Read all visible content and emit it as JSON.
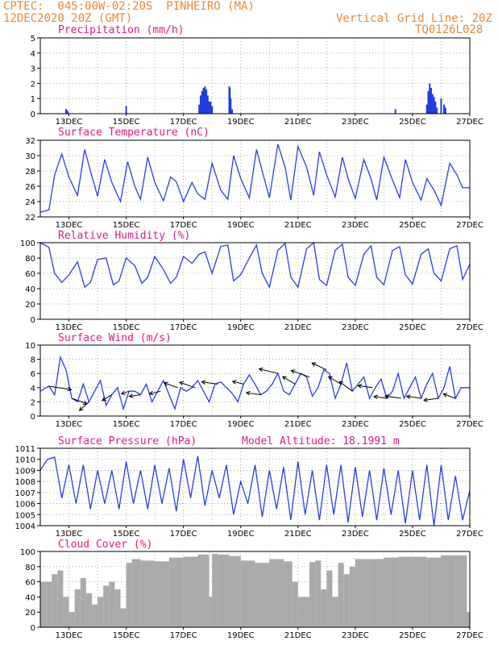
{
  "header": {
    "line1": "CPTEC:  045:00W-02:20S  PINHEIRO (MA)",
    "line2": "12DEC2020 20Z (GMT)",
    "grid_note": "Vertical Grid Line: 20Z",
    "code": "TQ0126L028"
  },
  "colors": {
    "header": "#e8893a",
    "title": "#e0198a",
    "line": "#2a3fe0",
    "bar": "#1f3bdb",
    "cloud": "#aaaaaa",
    "arrow": "#000000"
  },
  "x_tick_labels": [
    "13DEC",
    "15DEC",
    "17DEC",
    "19DEC",
    "21DEC",
    "23DEC",
    "25DEC",
    "27DEC"
  ],
  "chart_data": [
    {
      "type": "bar",
      "title": "Precipitation (mm/h)",
      "ylim": [
        0,
        5
      ],
      "yticks": [
        "0",
        "1",
        "2",
        "3",
        "4",
        "5"
      ],
      "x": [
        12.9,
        12.95,
        15.0,
        17.55,
        17.6,
        17.65,
        17.7,
        17.75,
        17.8,
        17.85,
        17.9,
        17.95,
        18.0,
        18.6,
        18.62,
        18.65,
        18.7,
        24.4,
        25.5,
        25.55,
        25.6,
        25.65,
        25.7,
        25.75,
        25.8,
        25.85,
        26.0,
        26.1,
        26.15
      ],
      "values": [
        0.3,
        0.2,
        0.5,
        0.6,
        1.2,
        1.5,
        1.7,
        1.8,
        1.6,
        1.2,
        0.8,
        0.8,
        0.5,
        1.8,
        1.7,
        1.0,
        0.3,
        0.3,
        0.6,
        1.5,
        2.0,
        1.7,
        1.3,
        1.1,
        0.8,
        0.4,
        1.0,
        0.6,
        0.4
      ]
    },
    {
      "type": "line",
      "title": "Surface Temperature (nC)",
      "ylim": [
        22,
        32
      ],
      "yticks": [
        "22",
        "24",
        "26",
        "28",
        "30",
        "32"
      ],
      "x": [
        12.0,
        12.3,
        12.5,
        12.75,
        13.0,
        13.3,
        13.55,
        13.75,
        14.0,
        14.25,
        14.5,
        14.8,
        15.05,
        15.3,
        15.5,
        15.75,
        16.0,
        16.3,
        16.55,
        16.75,
        17.0,
        17.3,
        17.5,
        17.75,
        18.0,
        18.3,
        18.55,
        18.75,
        19.0,
        19.3,
        19.55,
        19.75,
        20.0,
        20.3,
        20.55,
        20.75,
        21.0,
        21.3,
        21.55,
        21.75,
        22.0,
        22.3,
        22.55,
        22.75,
        23.0,
        23.3,
        23.55,
        23.75,
        24.0,
        24.3,
        24.55,
        24.75,
        25.0,
        25.3,
        25.5,
        25.75,
        26.0,
        26.3,
        26.55,
        26.75,
        27.0
      ],
      "values": [
        22.6,
        22.9,
        27.5,
        30.2,
        27.2,
        24.8,
        30.8,
        28.0,
        24.7,
        29.5,
        26.5,
        24.0,
        29.2,
        26.0,
        24.3,
        29.8,
        26.5,
        24.1,
        27.2,
        26.6,
        24.0,
        26.5,
        25.0,
        24.3,
        29.0,
        25.5,
        24.3,
        30.0,
        27.0,
        24.5,
        30.8,
        28.0,
        24.5,
        31.5,
        28.5,
        24.2,
        31.2,
        28.5,
        24.8,
        30.5,
        27.5,
        24.6,
        29.8,
        27.0,
        24.4,
        29.5,
        27.0,
        24.2,
        29.8,
        26.8,
        24.5,
        29.5,
        26.5,
        24.2,
        27.0,
        25.5,
        23.5,
        29.0,
        27.5,
        25.8,
        25.8
      ]
    },
    {
      "type": "line",
      "title": "Relative Humidity (%)",
      "ylim": [
        0,
        100
      ],
      "yticks": [
        "0",
        "20",
        "40",
        "60",
        "80",
        "100"
      ],
      "x": [
        12.0,
        12.15,
        12.3,
        12.5,
        12.75,
        13.0,
        13.3,
        13.55,
        13.75,
        14.0,
        14.3,
        14.55,
        14.75,
        15.0,
        15.3,
        15.55,
        15.75,
        16.0,
        16.3,
        16.55,
        16.75,
        17.0,
        17.3,
        17.55,
        17.75,
        18.0,
        18.3,
        18.55,
        18.75,
        19.0,
        19.3,
        19.55,
        19.75,
        20.0,
        20.3,
        20.55,
        20.75,
        21.0,
        21.3,
        21.55,
        21.75,
        22.0,
        22.3,
        22.55,
        22.75,
        23.0,
        23.3,
        23.55,
        23.75,
        24.0,
        24.3,
        24.55,
        24.75,
        25.0,
        25.3,
        25.55,
        25.75,
        26.0,
        26.3,
        26.55,
        26.75,
        27.0
      ],
      "values": [
        100,
        97,
        94,
        60,
        48,
        58,
        75,
        42,
        48,
        78,
        80,
        45,
        50,
        80,
        70,
        47,
        55,
        82,
        65,
        47,
        55,
        82,
        73,
        85,
        88,
        60,
        95,
        97,
        50,
        58,
        80,
        97,
        60,
        42,
        90,
        99,
        55,
        42,
        92,
        100,
        52,
        44,
        90,
        98,
        55,
        44,
        85,
        96,
        55,
        45,
        90,
        95,
        58,
        46,
        85,
        92,
        60,
        50,
        92,
        96,
        52,
        72
      ]
    },
    {
      "type": "line",
      "title": "Surface Wind (m/s)",
      "ylim": [
        0,
        10
      ],
      "yticks": [
        "0",
        "2",
        "4",
        "6",
        "8",
        "10"
      ],
      "x": [
        12.0,
        12.3,
        12.5,
        12.7,
        12.9,
        13.1,
        13.3,
        13.5,
        13.7,
        13.9,
        14.1,
        14.3,
        14.5,
        14.7,
        14.9,
        15.1,
        15.3,
        15.5,
        15.7,
        15.9,
        16.1,
        16.3,
        16.5,
        16.7,
        16.9,
        17.1,
        17.3,
        17.5,
        17.7,
        17.9,
        18.1,
        18.3,
        18.5,
        18.7,
        18.9,
        19.1,
        19.3,
        19.5,
        19.7,
        19.9,
        20.1,
        20.3,
        20.5,
        20.7,
        20.9,
        21.1,
        21.3,
        21.5,
        21.7,
        21.9,
        22.1,
        22.3,
        22.5,
        22.7,
        22.9,
        23.1,
        23.3,
        23.5,
        23.7,
        23.9,
        24.1,
        24.3,
        24.5,
        24.7,
        24.9,
        25.1,
        25.3,
        25.5,
        25.7,
        25.9,
        26.1,
        26.3,
        26.5,
        26.7,
        27.0
      ],
      "values": [
        3.5,
        4.2,
        3.0,
        8.3,
        6.5,
        2.5,
        2.0,
        4.5,
        2.0,
        3.5,
        5.0,
        1.5,
        3.0,
        4.0,
        1.0,
        3.5,
        3.5,
        3.0,
        4.5,
        2.0,
        3.5,
        5.0,
        3.0,
        1.0,
        4.0,
        3.5,
        4.0,
        5.0,
        3.5,
        2.0,
        4.5,
        4.8,
        4.0,
        3.2,
        2.0,
        4.5,
        5.8,
        4.5,
        3.0,
        3.5,
        4.5,
        6.0,
        3.5,
        3.0,
        4.5,
        6.0,
        5.5,
        2.8,
        4.0,
        6.5,
        6.0,
        2.5,
        4.5,
        7.5,
        3.5,
        4.5,
        5.5,
        2.5,
        4.0,
        5.2,
        2.5,
        3.5,
        6.0,
        2.5,
        4.0,
        5.5,
        2.5,
        4.5,
        6.0,
        2.5,
        4.0,
        7.0,
        2.5,
        4.0,
        4.0
      ]
    },
    {
      "type": "line",
      "title": "Surface Pressure (hPa)",
      "subtitle": "Model Altitude: 18.1991 m",
      "ylim": [
        1004,
        1011
      ],
      "yticks": [
        "1004",
        "1005",
        "1006",
        "1007",
        "1008",
        "1009",
        "1010",
        "1011"
      ],
      "x": [
        12.0,
        12.25,
        12.5,
        12.75,
        13.0,
        13.25,
        13.5,
        13.75,
        14.0,
        14.25,
        14.5,
        14.75,
        15.0,
        15.25,
        15.5,
        15.75,
        16.0,
        16.25,
        16.5,
        16.75,
        17.0,
        17.25,
        17.5,
        17.75,
        18.0,
        18.25,
        18.5,
        18.75,
        19.0,
        19.25,
        19.5,
        19.75,
        20.0,
        20.25,
        20.5,
        20.75,
        21.0,
        21.25,
        21.5,
        21.75,
        22.0,
        22.25,
        22.5,
        22.75,
        23.0,
        23.25,
        23.5,
        23.75,
        24.0,
        24.25,
        24.5,
        24.75,
        25.0,
        25.25,
        25.5,
        25.75,
        26.0,
        26.25,
        26.5,
        26.75,
        27.0
      ],
      "values": [
        1009.0,
        1010.0,
        1010.2,
        1006.5,
        1009.5,
        1006.0,
        1009.5,
        1005.5,
        1009.0,
        1006.0,
        1009.0,
        1005.5,
        1009.8,
        1006.0,
        1009.0,
        1005.5,
        1009.5,
        1006.0,
        1009.2,
        1005.3,
        1010.0,
        1006.5,
        1010.3,
        1005.8,
        1009.0,
        1006.5,
        1009.5,
        1005.0,
        1008.0,
        1006.0,
        1009.5,
        1004.8,
        1009.0,
        1005.5,
        1009.3,
        1004.5,
        1009.8,
        1005.0,
        1009.0,
        1004.5,
        1009.5,
        1005.0,
        1009.5,
        1004.3,
        1009.3,
        1004.8,
        1009.0,
        1004.5,
        1009.2,
        1005.0,
        1009.0,
        1004.2,
        1009.0,
        1004.5,
        1009.5,
        1004.0,
        1009.5,
        1004.5,
        1008.5,
        1004.5,
        1007.2
      ]
    },
    {
      "type": "area",
      "title": "Cloud Cover (%)",
      "ylim": [
        0,
        100
      ],
      "yticks": [
        "0",
        "20",
        "40",
        "60",
        "80",
        "100"
      ],
      "x": [
        12.0,
        12.2,
        12.4,
        12.6,
        12.8,
        13.0,
        13.2,
        13.4,
        13.6,
        13.8,
        14.0,
        14.2,
        14.4,
        14.6,
        14.8,
        15.0,
        15.2,
        15.5,
        16.0,
        16.5,
        17.0,
        17.5,
        17.9,
        18.0,
        18.2,
        18.6,
        19.0,
        19.5,
        20.0,
        20.5,
        20.8,
        21.0,
        21.4,
        21.6,
        21.8,
        22.0,
        22.2,
        22.4,
        22.6,
        22.8,
        23.0,
        23.5,
        24.0,
        24.5,
        25.0,
        25.5,
        26.0,
        26.5,
        26.9,
        27.0
      ],
      "values": [
        60,
        60,
        70,
        75,
        40,
        20,
        50,
        65,
        45,
        30,
        40,
        55,
        60,
        50,
        25,
        85,
        90,
        88,
        87,
        92,
        93,
        96,
        40,
        97,
        96,
        94,
        88,
        85,
        90,
        87,
        60,
        40,
        86,
        88,
        50,
        75,
        40,
        85,
        70,
        80,
        90,
        90,
        92,
        93,
        93,
        92,
        95,
        95,
        20,
        80
      ]
    }
  ],
  "wind_arrows": [
    {
      "day": 12.3,
      "dir": -0.15,
      "len": 28
    },
    {
      "day": 13.1,
      "dir": -0.35,
      "len": 20
    },
    {
      "day": 13.7,
      "dir": -2.4,
      "len": 16
    },
    {
      "day": 14.5,
      "dir": -2.6,
      "len": 14
    },
    {
      "day": 15.1,
      "dir": -2.8,
      "len": 10
    },
    {
      "day": 15.5,
      "dir": -3.0,
      "len": 14
    },
    {
      "day": 16.2,
      "dir": -2.9,
      "len": 14
    },
    {
      "day": 16.8,
      "dir": 2.8,
      "len": 18
    },
    {
      "day": 17.4,
      "dir": 2.8,
      "len": 20
    },
    {
      "day": 18.2,
      "dir": 3.0,
      "len": 20
    },
    {
      "day": 19.1,
      "dir": 2.9,
      "len": 14
    },
    {
      "day": 19.7,
      "dir": 3.0,
      "len": 18
    },
    {
      "day": 20.3,
      "dir": 2.9,
      "len": 24
    },
    {
      "day": 20.9,
      "dir": 2.6,
      "len": 18
    },
    {
      "day": 21.4,
      "dir": 2.8,
      "len": 24
    },
    {
      "day": 22.0,
      "dir": 2.7,
      "len": 20
    },
    {
      "day": 22.5,
      "dir": 2.6,
      "len": 18
    },
    {
      "day": 22.9,
      "dir": 2.5,
      "len": 20
    },
    {
      "day": 23.6,
      "dir": 3.0,
      "len": 18
    },
    {
      "day": 24.1,
      "dir": 3.0,
      "len": 16
    },
    {
      "day": 24.6,
      "dir": 3.0,
      "len": 20
    },
    {
      "day": 25.3,
      "dir": 3.0,
      "len": 18
    },
    {
      "day": 25.9,
      "dir": -3.0,
      "len": 18
    },
    {
      "day": 26.5,
      "dir": 2.8,
      "len": 16
    }
  ]
}
